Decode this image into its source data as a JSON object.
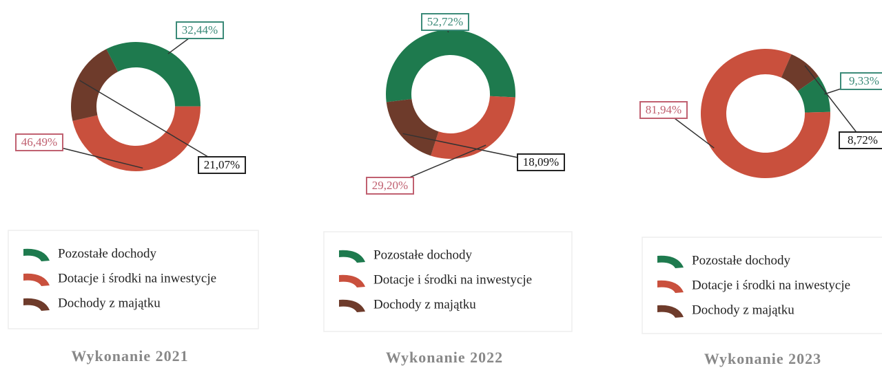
{
  "chart_data": [
    {
      "type": "pie",
      "title": "Wykonanie 2021",
      "categories": [
        "Pozostałe dochody",
        "Dotacje i środki na inwestycje",
        "Dochody z majątku"
      ],
      "values": [
        32.44,
        46.49,
        21.07
      ],
      "value_labels": [
        "32,44%",
        "46,49%",
        "21,07%"
      ],
      "colors": [
        "#1e7a4e",
        "#c9503d",
        "#6e3b2b"
      ]
    },
    {
      "type": "pie",
      "title": "Wykonanie 2022",
      "categories": [
        "Pozostałe dochody",
        "Dotacje i środki na inwestycje",
        "Dochody z majątku"
      ],
      "values": [
        52.72,
        29.2,
        18.09
      ],
      "value_labels": [
        "52,72%",
        "29,20%",
        "18,09%"
      ],
      "colors": [
        "#1e7a4e",
        "#c9503d",
        "#6e3b2b"
      ]
    },
    {
      "type": "pie",
      "title": "Wykonanie 2023",
      "categories": [
        "Pozostałe dochody",
        "Dotacje i środki na inwestycje",
        "Dochody z majątku"
      ],
      "values": [
        9.33,
        81.94,
        8.72
      ],
      "value_labels": [
        "9,33%",
        "81,94%",
        "8,72%"
      ],
      "colors": [
        "#1e7a4e",
        "#c9503d",
        "#6e3b2b"
      ]
    }
  ]
}
